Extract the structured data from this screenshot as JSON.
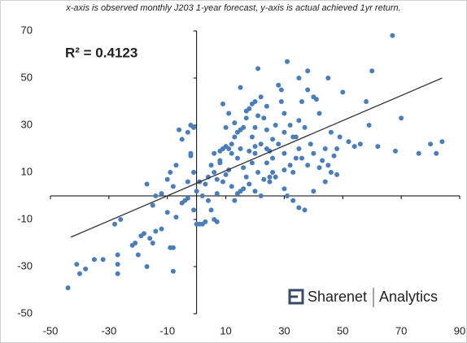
{
  "chart_data": {
    "type": "scatter",
    "title": "x-axis is observed  monthly J203  1-year forecast,  y-axis is actual achieved  1yr return.",
    "annotation": "R² = 0.4123",
    "brand": "Sharenet",
    "brand_suffix": "Analytics",
    "color": "#4a7ebb",
    "trendline_color": "#333333",
    "xlim": [
      -50,
      90
    ],
    "xticks": [
      -50,
      -30,
      -10,
      10,
      30,
      50,
      70,
      90
    ],
    "ylim": [
      -50,
      70
    ],
    "yticks": [
      -50,
      -30,
      -10,
      10,
      30,
      50,
      70
    ],
    "grid": false,
    "trendline": {
      "x": [
        -43,
        84
      ],
      "y": [
        -17.5,
        50
      ]
    },
    "x": [
      -44,
      -41,
      -40,
      -38,
      -35,
      -32,
      -28,
      -27,
      -27,
      -27,
      -26,
      -22,
      -21,
      -20,
      -19,
      -18,
      -17,
      -16,
      -15,
      -14,
      -12,
      -10,
      -9,
      -8,
      -8,
      -7,
      -5,
      -15,
      -17,
      -14,
      -12,
      -10,
      -9,
      -8,
      -7,
      -6,
      -5,
      -3,
      -2,
      -1,
      -2,
      -2,
      -1,
      0,
      -3,
      -4,
      -3,
      -1,
      0,
      1,
      2,
      3,
      5,
      6,
      7,
      4,
      2,
      1,
      3,
      4,
      5,
      6,
      7,
      8,
      6,
      8,
      9,
      10,
      11,
      12,
      13,
      14,
      15,
      16,
      17,
      18,
      20,
      22,
      24,
      15,
      17,
      19,
      21,
      23,
      20,
      19,
      22,
      24,
      25,
      26,
      28,
      30,
      32,
      34,
      9,
      10,
      11,
      13,
      12,
      14,
      15,
      16,
      18,
      20,
      19,
      21,
      23,
      24,
      25,
      26,
      18,
      17,
      15,
      14,
      12,
      11,
      10,
      8,
      9,
      7,
      13,
      16,
      20,
      22,
      25,
      27,
      30,
      31,
      33,
      35,
      37,
      40,
      21,
      31,
      28,
      29,
      30,
      32,
      33,
      35,
      36,
      38,
      37,
      39,
      40,
      41,
      42,
      43,
      44,
      45,
      46,
      47,
      48,
      49,
      50,
      46,
      45,
      52,
      54,
      56,
      58,
      59,
      60,
      62,
      67,
      68,
      70,
      76,
      80,
      82,
      84,
      35,
      38,
      40,
      29,
      34,
      36,
      38,
      42,
      44,
      48,
      20,
      27,
      30,
      24,
      26,
      33,
      35,
      30
    ],
    "y": [
      -39,
      -29,
      -33,
      -31,
      -27,
      -27,
      -12,
      -33,
      -25,
      -29,
      -10,
      -21,
      -20,
      -25,
      -17,
      -16,
      -30,
      -18,
      -20,
      -15,
      -14,
      -7,
      -22,
      -32,
      -22,
      -9,
      -3,
      -4,
      5,
      0,
      1,
      7,
      10,
      4,
      13,
      28,
      24,
      27,
      30,
      29,
      18,
      17,
      10,
      2,
      6,
      -2,
      -1,
      -6,
      -12,
      -12,
      -12,
      -11,
      -6,
      -10,
      -11,
      -2,
      0,
      6,
      5,
      8,
      13,
      10,
      7,
      15,
      18,
      19,
      20,
      21,
      20,
      22,
      25,
      27,
      28,
      29,
      33,
      37,
      40,
      42,
      38,
      46,
      36,
      39,
      34,
      33,
      29,
      25,
      22,
      20,
      19,
      16,
      22,
      18,
      13,
      16,
      39,
      29,
      35,
      31,
      18,
      16,
      20,
      12,
      19,
      21,
      14,
      10,
      7,
      14,
      8,
      10,
      5,
      8,
      2,
      1,
      4,
      11,
      9,
      14,
      6,
      1,
      -2,
      3,
      2,
      0,
      6,
      8,
      3,
      0,
      -2,
      -5,
      -6,
      2,
      54,
      57,
      47,
      40,
      35,
      30,
      25,
      32,
      40,
      45,
      29,
      22,
      18,
      41,
      35,
      15,
      20,
      50,
      27,
      17,
      20,
      25,
      44,
      10,
      13,
      23,
      21,
      22,
      40,
      30,
      53,
      21,
      68,
      19,
      33,
      18,
      22,
      18,
      23,
      50,
      53,
      42,
      45,
      25,
      16,
      13,
      12,
      6,
      9,
      18,
      30,
      27,
      28,
      24,
      10,
      20,
      11
    ]
  }
}
